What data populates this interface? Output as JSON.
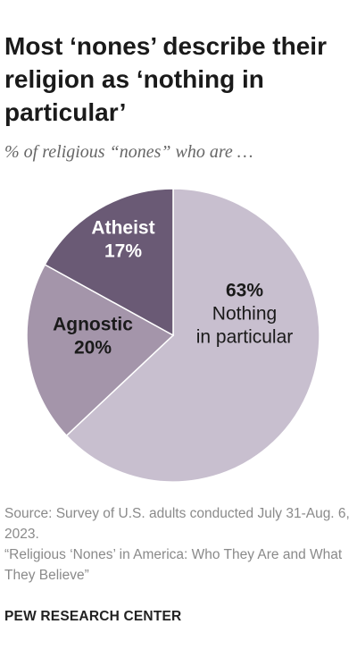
{
  "title": "Most ‘nones’ describe their religion as ‘nothing in particular’",
  "subtitle": "% of religious “nones” who are …",
  "chart_data": {
    "type": "pie",
    "slices": [
      {
        "name": "Nothing in particular",
        "value": 63,
        "label_value": "63%",
        "label_lines": [
          "Nothing",
          "in particular"
        ],
        "color": "#c8bfcf",
        "text_color": "#1a1a1a"
      },
      {
        "name": "Agnostic",
        "value": 20,
        "label_value": "20%",
        "label_lines": [
          "Agnostic"
        ],
        "color": "#a495aa",
        "text_color": "#1a1a1a"
      },
      {
        "name": "Atheist",
        "value": 17,
        "label_value": "17%",
        "label_lines": [
          "Atheist"
        ],
        "color": "#6a5a75",
        "text_color": "#ffffff"
      }
    ]
  },
  "source": {
    "line1": "Source: Survey of U.S. adults conducted July 31-Aug. 6, 2023.",
    "line2": "“Religious ‘Nones’ in America: Who They Are and What They Believe”"
  },
  "org": "PEW RESEARCH CENTER"
}
